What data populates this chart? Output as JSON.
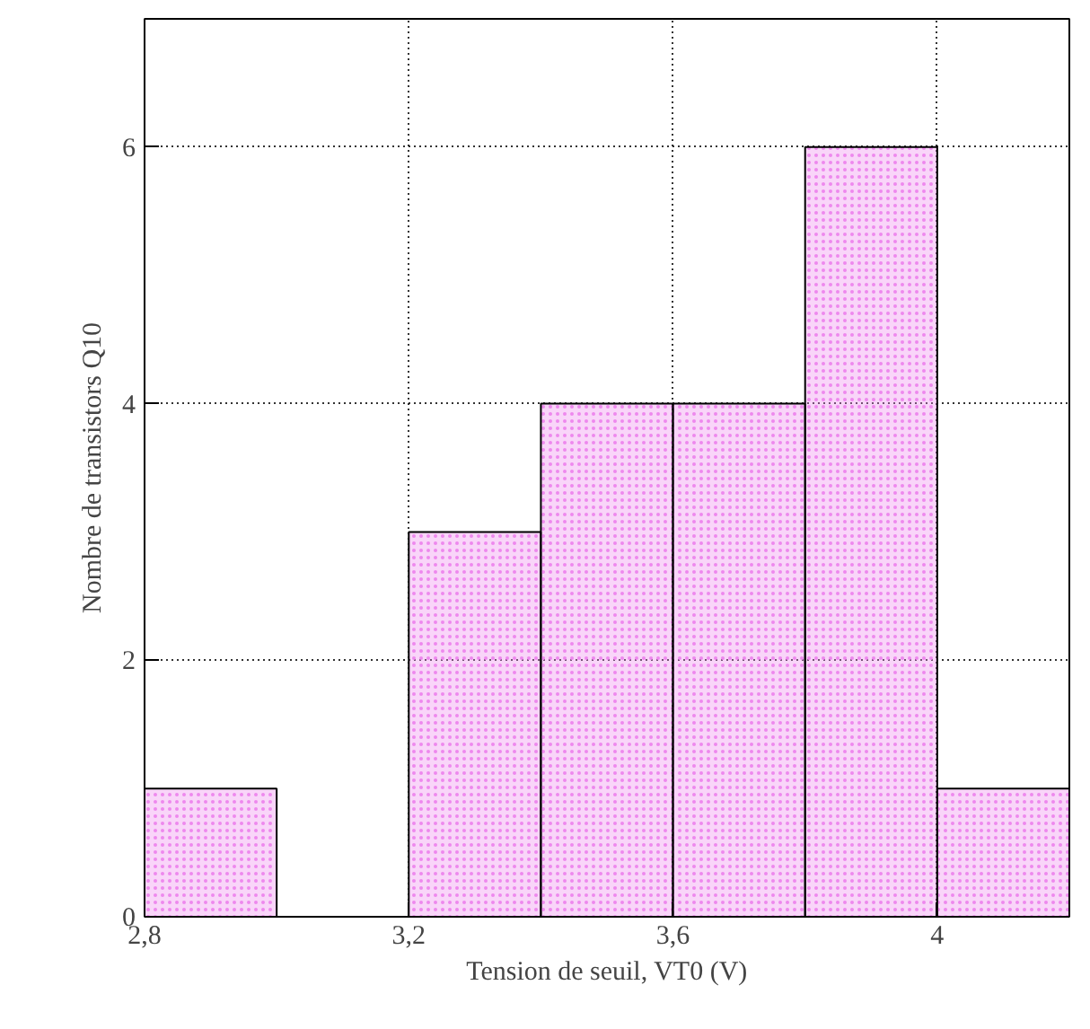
{
  "chart_data": {
    "type": "histogram",
    "xlabel": "Tension de seuil, VT0 (V)",
    "ylabel": "Nombre de transistors Q10",
    "bins": [
      2.8,
      3.0,
      3.2,
      3.4,
      3.6,
      3.8,
      4.0,
      4.2
    ],
    "values": [
      1,
      0,
      3,
      4,
      4,
      6,
      1
    ],
    "color": "#ee88ee",
    "xlim": [
      2.8,
      4.2
    ],
    "ylim": [
      0,
      7
    ],
    "xticks": [
      {
        "value": 2.8,
        "label": "2,8"
      },
      {
        "value": 3.2,
        "label": "3,2"
      },
      {
        "value": 3.6,
        "label": "3,6"
      },
      {
        "value": 4,
        "label": "4"
      }
    ],
    "yticks": [
      0,
      2,
      4,
      6
    ],
    "grid": true
  }
}
